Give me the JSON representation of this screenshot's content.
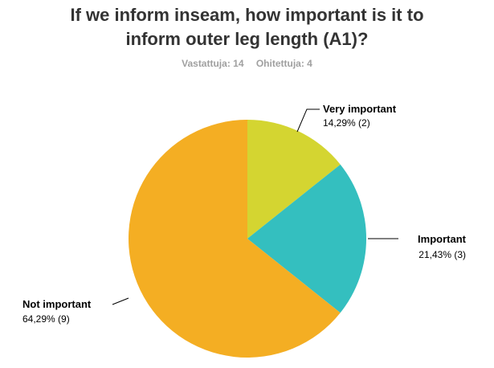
{
  "title": {
    "line1": "If we inform inseam, how important is it to",
    "line2": "inform outer leg length (A1)?"
  },
  "stats": {
    "answered": "Vastattuja: 14",
    "skipped": "Ohitettuja: 4"
  },
  "chart_data": {
    "type": "pie",
    "title": "If we inform inseam, how important is it to inform outer leg length (A1)?",
    "start": "12 o'clock, clockwise",
    "slices": [
      {
        "label": "Very important",
        "percent": 14.29,
        "count": 2,
        "value_label": "14,29% (2)",
        "color": "#d4d531"
      },
      {
        "label": "Important",
        "percent": 21.43,
        "count": 3,
        "value_label": "21,43% (3)",
        "color": "#34bfbf"
      },
      {
        "label": "Not important",
        "percent": 64.29,
        "count": 9,
        "value_label": "64,29% (9)",
        "color": "#f4ae23"
      }
    ]
  }
}
